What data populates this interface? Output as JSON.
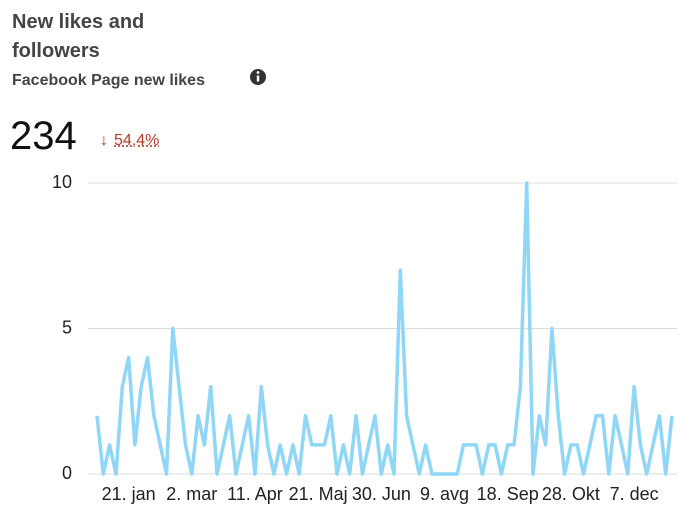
{
  "kpi_value": 234,
  "kpi_change": "54,4%",
  "chart_data": {
    "type": "line",
    "title": "New likes and followers",
    "subtitle": "Facebook Page new likes",
    "categories": [
      null,
      null,
      null,
      null,
      null,
      "21. jan",
      null,
      null,
      null,
      null,
      null,
      null,
      null,
      null,
      null,
      "2. mar",
      null,
      null,
      null,
      null,
      null,
      null,
      null,
      null,
      null,
      "11. Apr",
      null,
      null,
      null,
      null,
      null,
      null,
      null,
      null,
      null,
      "21. Maj",
      null,
      null,
      null,
      null,
      null,
      null,
      null,
      null,
      null,
      "30. Jun",
      null,
      null,
      null,
      null,
      null,
      null,
      null,
      null,
      null,
      "9. avg",
      null,
      null,
      null,
      null,
      null,
      null,
      null,
      null,
      null,
      "18. Sep",
      null,
      null,
      null,
      null,
      null,
      null,
      null,
      null,
      null,
      "28. Okt",
      null,
      null,
      null,
      null,
      null,
      null,
      null,
      null,
      null,
      "7. dec",
      null,
      null,
      null,
      null,
      null,
      null
    ],
    "values": [
      2,
      0,
      1,
      0,
      3,
      4,
      1,
      3,
      4,
      2,
      1,
      0,
      5,
      3,
      1,
      0,
      2,
      1,
      3,
      0,
      1,
      2,
      0,
      1,
      2,
      0,
      3,
      1,
      0,
      1,
      0,
      1,
      0,
      2,
      1,
      1,
      1,
      2,
      0,
      1,
      0,
      2,
      0,
      1,
      2,
      0,
      1,
      0,
      7,
      2,
      1,
      0,
      1,
      0,
      0,
      0,
      0,
      0,
      1,
      1,
      1,
      0,
      1,
      1,
      0,
      1,
      1,
      3,
      10,
      0,
      2,
      1,
      5,
      2,
      0,
      1,
      1,
      0,
      1,
      2,
      2,
      0,
      2,
      1,
      0,
      3,
      1,
      0,
      1,
      2,
      0,
      2
    ],
    "color": "#8fd6f7",
    "ylim": [
      0,
      10
    ],
    "yticks": [
      0,
      5,
      10
    ],
    "grid": true
  }
}
